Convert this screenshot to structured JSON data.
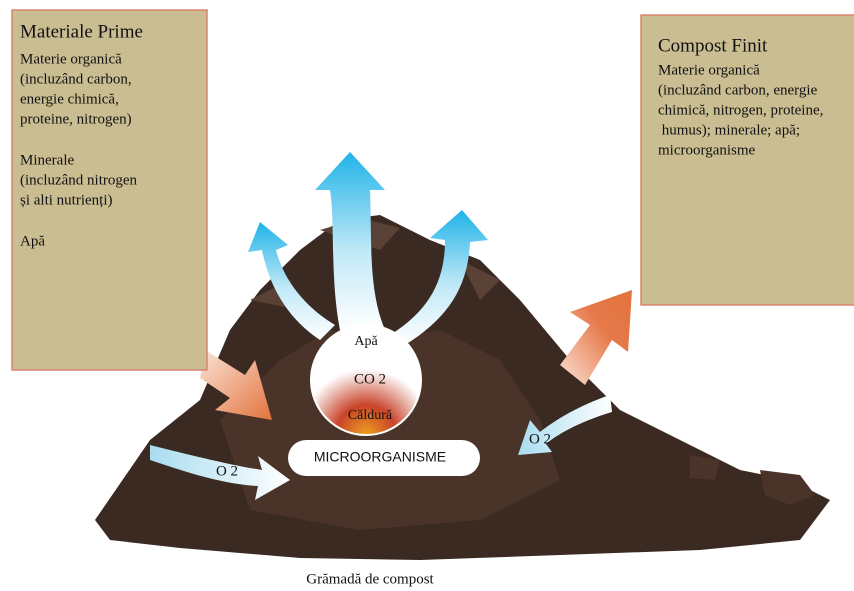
{
  "left_box": {
    "title": "Materiale Prime",
    "paragraphs": [
      [
        "Materie organică",
        "(incluzând carbon,",
        "energie chimică,",
        "proteine, nitrogen)"
      ],
      [
        "Minerale",
        "(incluzând nitrogen",
        "și alti nutrienți)"
      ],
      [
        "Apă"
      ]
    ]
  },
  "right_box": {
    "title": "Compost Finit",
    "lines": [
      "Materie organică",
      "(incluzând carbon, energie",
      "chimică, nitrogen, proteine,",
      " humus); minerale; apă;",
      "microorganisme"
    ]
  },
  "center": {
    "water": "Apă",
    "co2": "CO 2",
    "heat": "Căldură",
    "microbes": "MICROORGANISME"
  },
  "oxygen_left": "O 2",
  "oxygen_right": "O 2",
  "caption": "Grămadă de compost"
}
